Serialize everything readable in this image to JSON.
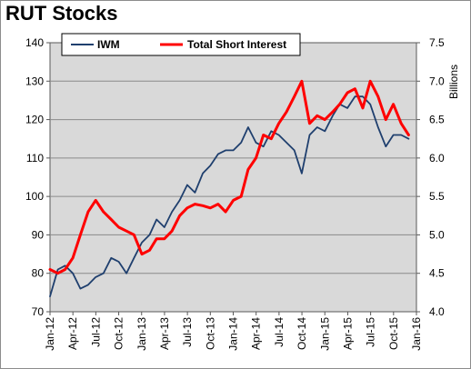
{
  "title": "RUT Stocks",
  "chart_data": {
    "type": "line",
    "title": "RUT Stocks",
    "x_ticks": [
      "Jan-12",
      "Apr-12",
      "Jul-12",
      "Oct-12",
      "Jan-13",
      "Apr-13",
      "Jul-13",
      "Oct-13",
      "Jan-14",
      "Apr-14",
      "Jul-14",
      "Oct-14",
      "Jan-15",
      "Apr-15",
      "Jul-15",
      "Oct-15",
      "Jan-16"
    ],
    "y_left_ticks": [
      70,
      80,
      90,
      100,
      110,
      120,
      130,
      140
    ],
    "y_right_ticks": [
      "4.0",
      "4.5",
      "5.0",
      "5.5",
      "6.0",
      "6.5",
      "7.0",
      "7.5"
    ],
    "ylim_left": [
      70,
      140
    ],
    "ylim_right": [
      4.0,
      7.5
    ],
    "ylabel_right": "Billions",
    "grid": "horizontal",
    "legend": "top-center",
    "series": [
      {
        "name": "IWM",
        "axis": "left",
        "color": "#1f3f6e",
        "x": [
          "2012-01",
          "2012-02",
          "2012-03",
          "2012-04",
          "2012-05",
          "2012-06",
          "2012-07",
          "2012-08",
          "2012-09",
          "2012-10",
          "2012-11",
          "2012-12",
          "2013-01",
          "2013-02",
          "2013-03",
          "2013-04",
          "2013-05",
          "2013-06",
          "2013-07",
          "2013-08",
          "2013-09",
          "2013-10",
          "2013-11",
          "2013-12",
          "2014-01",
          "2014-02",
          "2014-03",
          "2014-04",
          "2014-05",
          "2014-06",
          "2014-07",
          "2014-08",
          "2014-09",
          "2014-10",
          "2014-11",
          "2014-12",
          "2015-01",
          "2015-02",
          "2015-03",
          "2015-04",
          "2015-05",
          "2015-06",
          "2015-07",
          "2015-08",
          "2015-09",
          "2015-10",
          "2015-11",
          "2015-12"
        ],
        "values": [
          74,
          81,
          82,
          80,
          76,
          77,
          79,
          80,
          84,
          83,
          80,
          84,
          88,
          90,
          94,
          92,
          96,
          99,
          103,
          101,
          106,
          108,
          111,
          112,
          112,
          114,
          118,
          114,
          113,
          117,
          116,
          114,
          112,
          106,
          116,
          118,
          117,
          121,
          124,
          123,
          126,
          126,
          124,
          118,
          113,
          116,
          116,
          115
        ]
      },
      {
        "name": "Total Short Interest",
        "axis": "right",
        "color": "#ff0000",
        "x": [
          "2012-01",
          "2012-02",
          "2012-03",
          "2012-04",
          "2012-05",
          "2012-06",
          "2012-07",
          "2012-08",
          "2012-09",
          "2012-10",
          "2012-11",
          "2012-12",
          "2013-01",
          "2013-02",
          "2013-03",
          "2013-04",
          "2013-05",
          "2013-06",
          "2013-07",
          "2013-08",
          "2013-09",
          "2013-10",
          "2013-11",
          "2013-12",
          "2014-01",
          "2014-02",
          "2014-03",
          "2014-04",
          "2014-05",
          "2014-06",
          "2014-07",
          "2014-08",
          "2014-09",
          "2014-10",
          "2014-11",
          "2014-12",
          "2015-01",
          "2015-02",
          "2015-03",
          "2015-04",
          "2015-05",
          "2015-06",
          "2015-07",
          "2015-08",
          "2015-09",
          "2015-10",
          "2015-11",
          "2015-12"
        ],
        "values": [
          4.55,
          4.5,
          4.55,
          4.7,
          5.0,
          5.3,
          5.45,
          5.3,
          5.2,
          5.1,
          5.05,
          5.0,
          4.75,
          4.8,
          4.95,
          4.95,
          5.05,
          5.25,
          5.35,
          5.4,
          5.38,
          5.35,
          5.4,
          5.3,
          5.45,
          5.5,
          5.85,
          6.0,
          6.3,
          6.25,
          6.45,
          6.6,
          6.8,
          7.0,
          6.45,
          6.55,
          6.5,
          6.6,
          6.7,
          6.85,
          6.9,
          6.65,
          7.0,
          6.8,
          6.5,
          6.7,
          6.45,
          6.3
        ]
      }
    ]
  }
}
